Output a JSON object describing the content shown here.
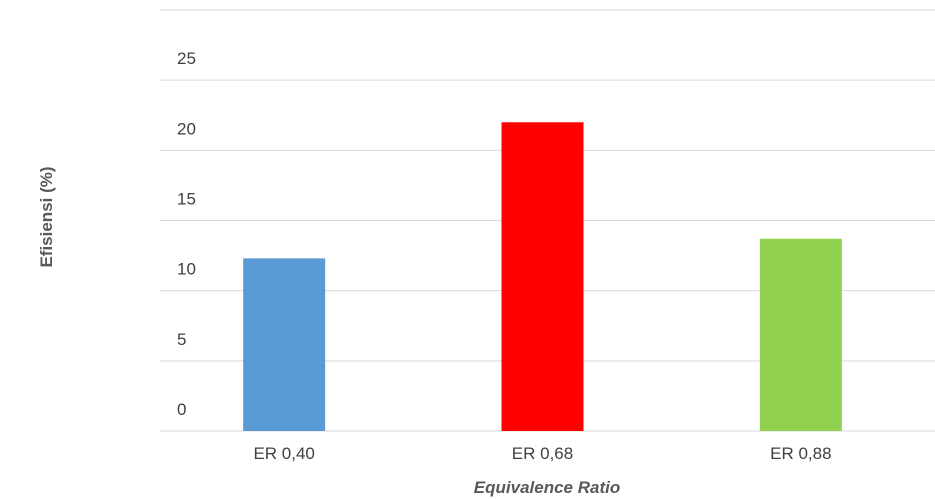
{
  "chart_data": {
    "type": "bar",
    "categories": [
      "ER 0,40",
      "ER 0,68",
      "ER 0,88"
    ],
    "series": [
      {
        "values": [
          12.3,
          22.0,
          13.7
        ]
      }
    ],
    "bar_colors": [
      "#5b9bd5",
      "#ff0000",
      "#92d050"
    ],
    "yticks": [
      "0",
      "5",
      "10",
      "15",
      "20",
      "25",
      "30"
    ],
    "ylim": [
      0,
      30
    ],
    "ylabel": "Efisiensi (%)",
    "xlabel": "Equivalence Ratio",
    "grid": true,
    "gridline_color": "#d9d9d9",
    "legend": false
  }
}
